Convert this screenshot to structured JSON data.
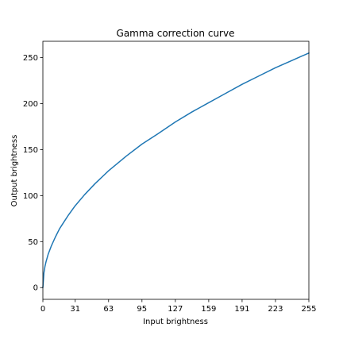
{
  "chart_data": {
    "type": "line",
    "title": "Gamma correction curve",
    "xlabel": "Input brightness",
    "ylabel": "Output brightness",
    "xlim": [
      0,
      255
    ],
    "ylim": [
      -12.75,
      267.75
    ],
    "x_ticks": [
      0,
      31,
      63,
      95,
      127,
      159,
      191,
      223,
      255
    ],
    "y_ticks": [
      0,
      50,
      100,
      150,
      200,
      250
    ],
    "grid": false,
    "gamma": 0.5,
    "series": [
      {
        "color": "#1f77b4",
        "x": [
          0,
          1,
          2,
          3,
          5,
          8,
          12,
          16,
          20,
          24,
          31,
          40,
          50,
          63,
          80,
          95,
          110,
          127,
          143,
          159,
          175,
          191,
          207,
          223,
          239,
          255
        ],
        "y": [
          0,
          16,
          23,
          28,
          36,
          45,
          55,
          64,
          71,
          78,
          89,
          101,
          113,
          127,
          143,
          156,
          167,
          180,
          191,
          201,
          211,
          221,
          230,
          239,
          247,
          255
        ]
      }
    ]
  }
}
